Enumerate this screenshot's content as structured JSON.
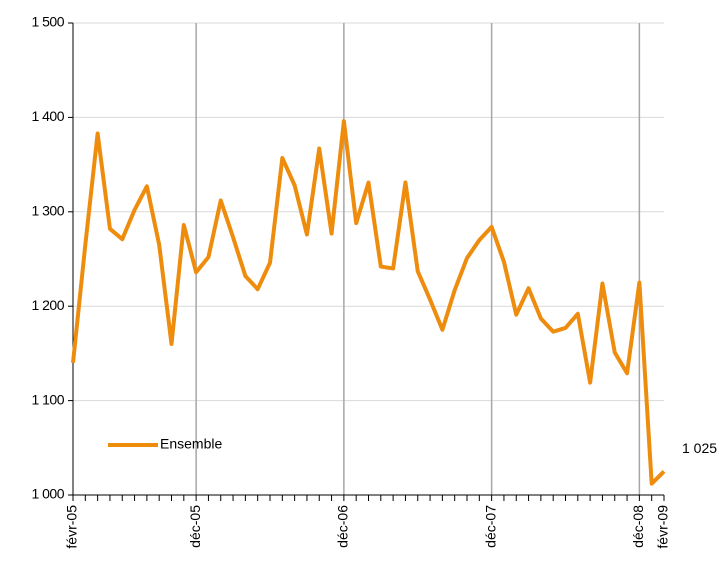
{
  "chart_data": {
    "type": "line",
    "categories": [
      "févr-05",
      null,
      null,
      null,
      null,
      null,
      null,
      null,
      null,
      null,
      "déc-05",
      null,
      null,
      null,
      null,
      null,
      null,
      null,
      null,
      null,
      null,
      null,
      "déc-06",
      null,
      null,
      null,
      null,
      null,
      null,
      null,
      null,
      null,
      null,
      null,
      "déc-07",
      null,
      null,
      null,
      null,
      null,
      null,
      null,
      null,
      null,
      null,
      null,
      "déc-08",
      null,
      "févr-09"
    ],
    "series": [
      {
        "name": "Ensemble",
        "color": "#ee8c0e",
        "values": [
          1140,
          1265,
          1383,
          1282,
          1271,
          1302,
          1327,
          1265,
          1160,
          1286,
          1236,
          1252,
          1312,
          1273,
          1232,
          1218,
          1246,
          1357,
          1328,
          1276,
          1367,
          1277,
          1396,
          1288,
          1331,
          1242,
          1240,
          1331,
          1237,
          1207,
          1175,
          1217,
          1251,
          1270,
          1284,
          1247,
          1191,
          1219,
          1187,
          1173,
          1177,
          1192,
          1119,
          1224,
          1151,
          1129,
          1225,
          1012,
          1025
        ],
        "value_labels": [
          null,
          null,
          null,
          null,
          null,
          null,
          null,
          null,
          null,
          null,
          null,
          null,
          null,
          null,
          null,
          null,
          null,
          null,
          null,
          null,
          null,
          null,
          null,
          null,
          null,
          null,
          null,
          null,
          null,
          null,
          null,
          null,
          null,
          null,
          null,
          null,
          null,
          null,
          null,
          null,
          null,
          null,
          null,
          null,
          null,
          null,
          null,
          null,
          "1 025"
        ]
      }
    ],
    "ylim": [
      1000,
      1500
    ],
    "yticks": [
      {
        "value": 1000,
        "label": "1 000"
      },
      {
        "value": 1100,
        "label": "1 100"
      },
      {
        "value": 1200,
        "label": "1 200"
      },
      {
        "value": 1300,
        "label": "1 300"
      },
      {
        "value": 1400,
        "label": "1 400"
      },
      {
        "value": 1500,
        "label": "1 500"
      }
    ],
    "grid": true,
    "legend": "lower left"
  }
}
